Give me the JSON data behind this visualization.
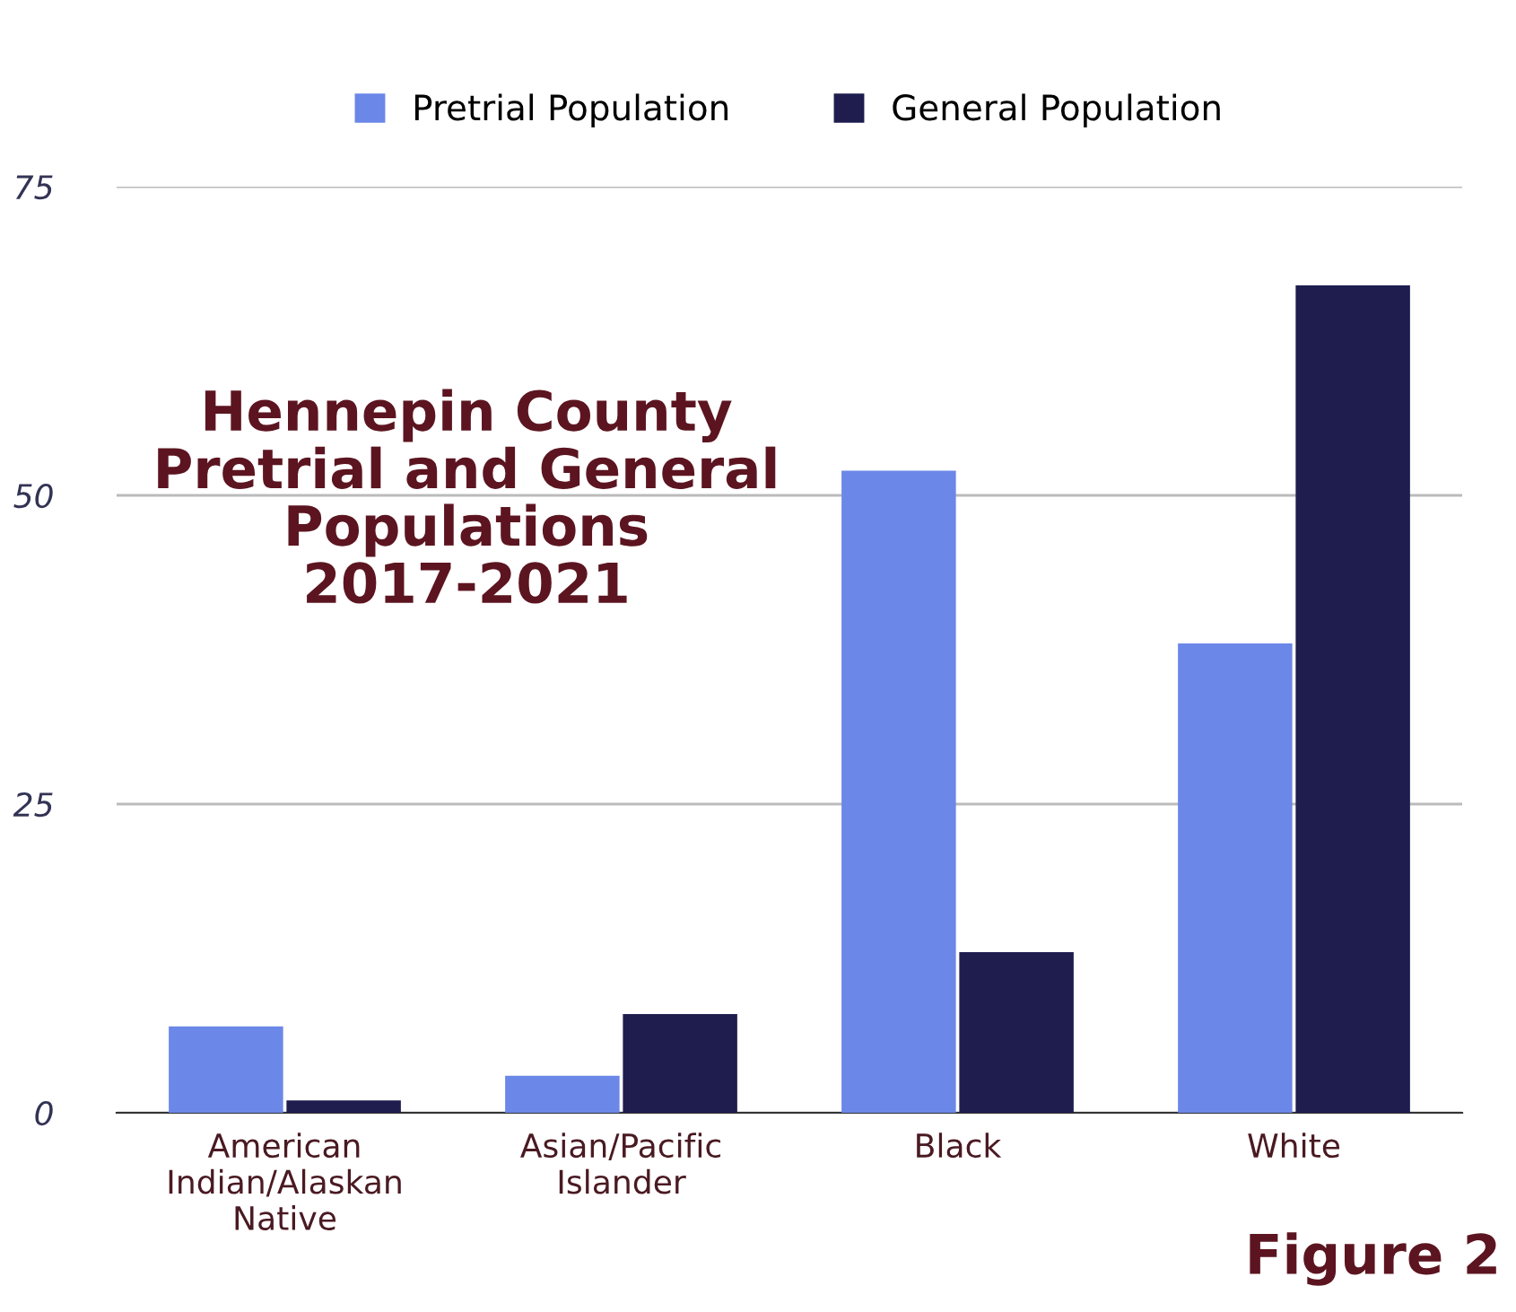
{
  "chart_data": {
    "type": "bar",
    "title": "Hennepin County\nPretrial and General\nPopulations\n2017-2021",
    "categories": [
      "American\nIndian/Alaskan\nNative",
      "Asian/Pacific\nIslander",
      "Black",
      "White"
    ],
    "series": [
      {
        "name": "Pretrial Population",
        "color": "#6b87e8",
        "values": [
          7,
          3,
          52,
          38
        ]
      },
      {
        "name": "General Population",
        "color": "#1f1d4e",
        "values": [
          1,
          8,
          13,
          67
        ]
      }
    ],
    "ylim": [
      0,
      75
    ],
    "yticks": [
      0,
      25,
      50,
      75
    ],
    "grid": "y",
    "legend": "top",
    "annotations": [
      "Figure 2"
    ]
  }
}
